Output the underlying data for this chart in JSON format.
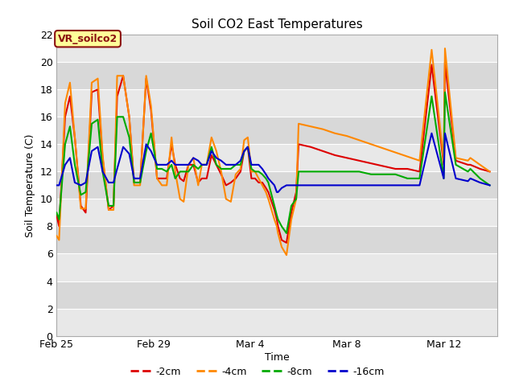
{
  "title": "Soil CO2 East Temperatures",
  "ylabel": "Soil Temperature (C)",
  "xlabel": "Time",
  "ylim": [
    0,
    22
  ],
  "yticks": [
    0,
    2,
    4,
    6,
    8,
    10,
    12,
    14,
    16,
    18,
    20,
    22
  ],
  "label_box_text": "VR_soilco2",
  "label_box_bg": "#ffff99",
  "label_box_edge": "#8b1010",
  "series": [
    {
      "label": "-2cm",
      "color": "#dd0000",
      "x_days": [
        0,
        0.1,
        0.35,
        0.55,
        0.75,
        1.0,
        1.2,
        1.45,
        1.7,
        1.9,
        2.15,
        2.35,
        2.5,
        2.75,
        3.0,
        3.2,
        3.45,
        3.7,
        3.9,
        4.15,
        4.35,
        4.55,
        4.75,
        4.9,
        5.1,
        5.25,
        5.45,
        5.65,
        5.85,
        6.0,
        6.2,
        6.4,
        6.6,
        6.8,
        7.0,
        7.2,
        7.4,
        7.6,
        7.75,
        7.9,
        8.05,
        8.2,
        8.35,
        8.5,
        8.65,
        8.75,
        9.0,
        9.1,
        9.15,
        9.3,
        9.5,
        9.7,
        9.9,
        10.0,
        10.5,
        11.0,
        11.5,
        12.0,
        12.5,
        13.0,
        13.5,
        14.0,
        14.5,
        15.0,
        15.5,
        16.0,
        16.05,
        16.5,
        17.0,
        17.1,
        17.5,
        17.9
      ],
      "y": [
        8.8,
        8.0,
        16.0,
        17.5,
        14.5,
        9.5,
        9.0,
        17.8,
        18.0,
        13.0,
        9.2,
        9.5,
        17.5,
        19.0,
        16.0,
        11.2,
        11.2,
        18.8,
        16.5,
        11.5,
        11.5,
        11.5,
        14.0,
        12.5,
        11.5,
        11.3,
        12.5,
        12.5,
        11.2,
        11.5,
        11.5,
        13.2,
        12.5,
        11.8,
        11.0,
        11.2,
        11.5,
        12.0,
        13.5,
        13.8,
        11.5,
        11.5,
        11.2,
        11.2,
        10.8,
        10.5,
        9.2,
        8.5,
        8.0,
        7.0,
        6.8,
        9.0,
        10.5,
        14.0,
        13.8,
        13.5,
        13.2,
        13.0,
        12.8,
        12.6,
        12.4,
        12.2,
        12.2,
        12.0,
        19.8,
        12.5,
        20.0,
        12.8,
        12.5,
        12.5,
        12.2,
        12.0
      ]
    },
    {
      "label": "-4cm",
      "color": "#ff8800",
      "x_days": [
        0,
        0.1,
        0.35,
        0.55,
        0.75,
        1.0,
        1.2,
        1.45,
        1.7,
        1.9,
        2.15,
        2.35,
        2.5,
        2.75,
        3.0,
        3.2,
        3.45,
        3.7,
        3.9,
        4.15,
        4.35,
        4.55,
        4.75,
        4.9,
        5.1,
        5.25,
        5.45,
        5.65,
        5.85,
        6.0,
        6.2,
        6.4,
        6.6,
        6.8,
        7.0,
        7.2,
        7.4,
        7.6,
        7.75,
        7.9,
        8.05,
        8.2,
        8.35,
        8.5,
        8.65,
        8.75,
        9.0,
        9.1,
        9.15,
        9.3,
        9.5,
        9.7,
        9.9,
        10.0,
        10.5,
        11.0,
        11.5,
        12.0,
        12.5,
        13.0,
        13.5,
        14.0,
        14.5,
        15.0,
        15.5,
        16.0,
        16.05,
        16.5,
        17.0,
        17.1,
        17.5,
        17.9
      ],
      "y": [
        7.3,
        7.0,
        17.0,
        18.5,
        14.5,
        9.3,
        9.3,
        18.5,
        18.8,
        13.2,
        9.2,
        9.2,
        19.0,
        19.0,
        16.0,
        11.0,
        11.0,
        19.0,
        16.8,
        11.5,
        11.0,
        11.0,
        14.5,
        12.0,
        10.0,
        9.8,
        12.5,
        13.0,
        11.0,
        12.5,
        12.5,
        14.5,
        13.5,
        12.0,
        10.0,
        9.8,
        11.8,
        12.2,
        14.3,
        14.5,
        12.0,
        12.0,
        11.5,
        11.0,
        10.5,
        10.0,
        8.5,
        8.0,
        7.5,
        6.5,
        5.9,
        8.5,
        10.0,
        15.5,
        15.3,
        15.1,
        14.8,
        14.6,
        14.3,
        14.0,
        13.7,
        13.4,
        13.1,
        12.8,
        20.9,
        12.8,
        21.0,
        13.0,
        12.8,
        13.0,
        12.5,
        12.0
      ]
    },
    {
      "label": "-8cm",
      "color": "#00aa00",
      "x_days": [
        0,
        0.1,
        0.35,
        0.55,
        0.75,
        1.0,
        1.2,
        1.45,
        1.7,
        1.9,
        2.15,
        2.35,
        2.5,
        2.75,
        3.0,
        3.2,
        3.45,
        3.7,
        3.9,
        4.15,
        4.35,
        4.55,
        4.75,
        4.9,
        5.1,
        5.25,
        5.45,
        5.65,
        5.85,
        6.0,
        6.2,
        6.4,
        6.6,
        6.8,
        7.0,
        7.2,
        7.4,
        7.6,
        7.75,
        7.9,
        8.05,
        8.2,
        8.35,
        8.5,
        8.65,
        8.75,
        9.0,
        9.1,
        9.15,
        9.3,
        9.5,
        9.7,
        9.9,
        10.0,
        10.5,
        11.0,
        11.5,
        12.0,
        12.5,
        13.0,
        13.5,
        14.0,
        14.5,
        15.0,
        15.5,
        16.0,
        16.05,
        16.5,
        17.0,
        17.1,
        17.5,
        17.9
      ],
      "y": [
        9.0,
        8.5,
        14.0,
        15.3,
        12.5,
        10.3,
        10.5,
        15.5,
        15.8,
        12.0,
        9.5,
        9.5,
        16.0,
        16.0,
        14.5,
        11.2,
        11.2,
        13.5,
        14.8,
        12.2,
        12.2,
        12.0,
        12.5,
        11.5,
        12.0,
        12.0,
        12.0,
        12.5,
        12.2,
        12.5,
        12.5,
        13.8,
        12.5,
        12.2,
        12.2,
        12.2,
        12.5,
        12.5,
        13.5,
        13.8,
        12.2,
        12.0,
        12.0,
        11.8,
        11.5,
        11.2,
        9.5,
        8.8,
        8.5,
        8.0,
        7.5,
        9.5,
        10.0,
        12.0,
        12.0,
        12.0,
        12.0,
        12.0,
        12.0,
        11.8,
        11.8,
        11.8,
        11.5,
        11.5,
        17.5,
        11.5,
        17.8,
        12.5,
        12.0,
        12.2,
        11.5,
        11.0
      ]
    },
    {
      "label": "-16cm",
      "color": "#0000cc",
      "x_days": [
        0,
        0.1,
        0.35,
        0.55,
        0.75,
        1.0,
        1.2,
        1.45,
        1.7,
        1.9,
        2.15,
        2.35,
        2.5,
        2.75,
        3.0,
        3.2,
        3.45,
        3.7,
        3.9,
        4.15,
        4.35,
        4.55,
        4.75,
        4.9,
        5.1,
        5.25,
        5.45,
        5.65,
        5.85,
        6.0,
        6.2,
        6.4,
        6.6,
        6.8,
        7.0,
        7.2,
        7.4,
        7.6,
        7.75,
        7.9,
        8.05,
        8.2,
        8.35,
        8.5,
        8.65,
        8.75,
        9.0,
        9.1,
        9.15,
        9.3,
        9.5,
        9.7,
        9.9,
        10.0,
        10.5,
        11.0,
        11.5,
        12.0,
        12.5,
        13.0,
        13.5,
        14.0,
        14.5,
        15.0,
        15.5,
        16.0,
        16.05,
        16.5,
        17.0,
        17.1,
        17.5,
        17.9
      ],
      "y": [
        11.0,
        11.0,
        12.5,
        13.0,
        11.2,
        11.0,
        11.2,
        13.5,
        13.8,
        12.0,
        11.2,
        11.2,
        12.2,
        13.8,
        13.3,
        11.5,
        11.5,
        14.0,
        13.5,
        12.5,
        12.5,
        12.5,
        12.8,
        12.5,
        12.5,
        12.5,
        12.5,
        13.0,
        12.8,
        12.5,
        12.5,
        13.5,
        13.0,
        12.8,
        12.5,
        12.5,
        12.5,
        12.8,
        13.5,
        13.8,
        12.5,
        12.5,
        12.5,
        12.2,
        11.8,
        11.5,
        11.0,
        10.5,
        10.5,
        10.8,
        11.0,
        11.0,
        11.0,
        11.0,
        11.0,
        11.0,
        11.0,
        11.0,
        11.0,
        11.0,
        11.0,
        11.0,
        11.0,
        11.0,
        14.8,
        11.5,
        14.8,
        11.5,
        11.3,
        11.5,
        11.2,
        11.0
      ]
    }
  ],
  "xtick_labels": [
    "Feb 25",
    "Feb 29",
    "Mar 4",
    "Mar 8",
    "Mar 12"
  ],
  "xtick_days": [
    0,
    4,
    8,
    12,
    16
  ],
  "xlim": [
    0,
    18.2
  ],
  "band_colors": [
    "#e8e8e8",
    "#d8d8d8"
  ],
  "white_line_color": "#ffffff",
  "spine_color": "#aaaaaa",
  "title_fontsize": 11,
  "axis_fontsize": 9,
  "fig_bg": "#ffffff"
}
